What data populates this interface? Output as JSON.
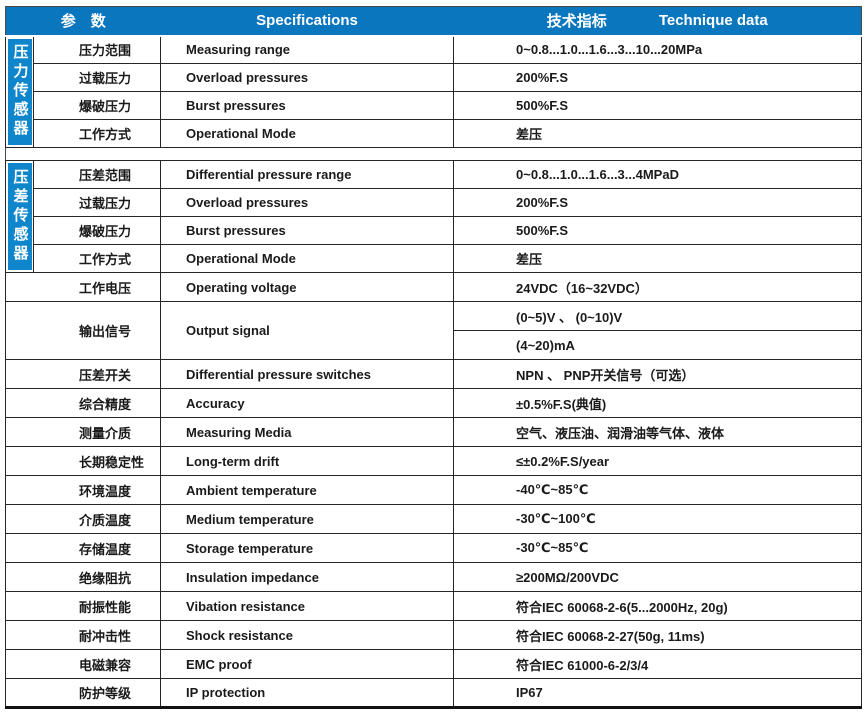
{
  "header": {
    "params_label": "参　数",
    "specs_label": "Specifications",
    "tech_cn_label": "技术指标",
    "tech_en_label": "Technique data"
  },
  "colors": {
    "header_bg": "#0a76bd",
    "sidebar_bg": "#0f85cc",
    "grid_line": "#262626"
  },
  "sections": [
    {
      "name": "压力传感器",
      "rows": [
        {
          "param": "压力范围",
          "spec": "Measuring range",
          "value": "0~0.8...1.0...1.6...3...10...20MPa"
        },
        {
          "param": "过载压力",
          "spec": "Overload pressures",
          "value": "200%F.S"
        },
        {
          "param": "爆破压力",
          "spec": "Burst pressures",
          "value": "500%F.S"
        },
        {
          "param": "工作方式",
          "spec": "Operational Mode",
          "value": "差压"
        }
      ]
    },
    {
      "name": "压差传感器",
      "rows": [
        {
          "param": "压差范围",
          "spec": "Differential pressure range",
          "value": "0~0.8...1.0...1.6...3...4MPaD"
        },
        {
          "param": "过载压力",
          "spec": "Overload pressures",
          "value": "200%F.S"
        },
        {
          "param": "爆破压力",
          "spec": "Burst pressures",
          "value": "500%F.S"
        },
        {
          "param": "工作方式",
          "spec": "Operational Mode",
          "value": "差压"
        }
      ]
    }
  ],
  "common_rows": [
    {
      "param": "工作电压",
      "spec": "Operating voltage",
      "value": "24VDC（16~32VDC）"
    },
    {
      "param": "输出信号",
      "spec": "Output signal",
      "values": [
        "(0~5)V 、 (0~10)V",
        "(4~20)mA"
      ]
    },
    {
      "param": "压差开关",
      "spec": "Differential pressure switches",
      "value": "NPN 、 PNP开关信号（可选）"
    },
    {
      "param": "综合精度",
      "spec": "Accuracy",
      "value": "±0.5%F.S(典值)"
    },
    {
      "param": "测量介质",
      "spec": "Measuring Media",
      "value": "空气、液压油、润滑油等气体、液体"
    },
    {
      "param": "长期稳定性",
      "spec": "Long-term drift",
      "value": "≤±0.2%F.S/year"
    },
    {
      "param": "环境温度",
      "spec": "Ambient temperature",
      "value": "-40℃~85℃"
    },
    {
      "param": "介质温度",
      "spec": "Medium temperature",
      "value": "-30℃~100℃"
    },
    {
      "param": "存储温度",
      "spec": "Storage temperature",
      "value": "-30℃~85℃"
    },
    {
      "param": "绝缘阻抗",
      "spec": "Insulation impedance",
      "value": "≥200MΩ/200VDC"
    },
    {
      "param": "耐振性能",
      "spec": "Vibation resistance",
      "value": "符合IEC 60068-2-6(5...2000Hz, 20g)"
    },
    {
      "param": "耐冲击性",
      "spec": "Shock   resistance",
      "value": "符合IEC 60068-2-27(50g, 11ms)"
    },
    {
      "param": "电磁兼容",
      "spec": "EMC proof",
      "value": "符合IEC 61000-6-2/3/4"
    },
    {
      "param": "防护等级",
      "spec": "IP protection",
      "value": "IP67"
    }
  ]
}
